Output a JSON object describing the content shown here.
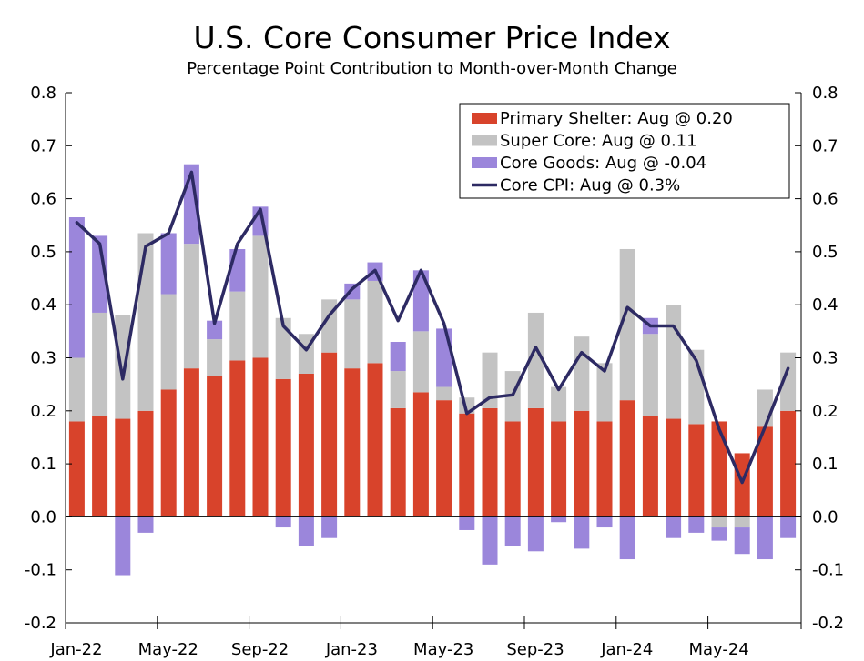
{
  "chart_data": {
    "type": "bar",
    "title": "U.S. Core Consumer Price Index",
    "subtitle": "Percentage Point Contribution to Month-over-Month Change",
    "stacked": true,
    "ylim": [
      -0.2,
      0.8
    ],
    "y_ticks": [
      "0.8",
      "0.7",
      "0.6",
      "0.5",
      "0.4",
      "0.3",
      "0.2",
      "0.1",
      "0.0",
      "-0.1",
      "-0.2"
    ],
    "y_tick_values": [
      0.8,
      0.7,
      0.6,
      0.5,
      0.4,
      0.3,
      0.2,
      0.1,
      0.0,
      -0.1,
      -0.2
    ],
    "secondary_y_axis": true,
    "x_tick_labels": [
      "Jan-22",
      "May-22",
      "Sep-22",
      "Jan-23",
      "May-23",
      "Sep-23",
      "Jan-24",
      "May-24"
    ],
    "x_tick_positions": [
      0,
      4,
      8,
      12,
      16,
      20,
      24,
      28
    ],
    "categories": [
      "Jan-22",
      "Feb-22",
      "Mar-22",
      "Apr-22",
      "May-22",
      "Jun-22",
      "Jul-22",
      "Aug-22",
      "Sep-22",
      "Oct-22",
      "Nov-22",
      "Dec-22",
      "Jan-23",
      "Feb-23",
      "Mar-23",
      "Apr-23",
      "May-23",
      "Jun-23",
      "Jul-23",
      "Aug-23",
      "Sep-23",
      "Oct-23",
      "Nov-23",
      "Dec-23",
      "Jan-24",
      "Feb-24",
      "Mar-24",
      "Apr-24",
      "May-24",
      "Jun-24",
      "Jul-24",
      "Aug-24"
    ],
    "legend_position": "top-right",
    "series": [
      {
        "name": "Primary Shelter: Aug @ 0.20",
        "type": "bar",
        "color": "#D8432B",
        "values": [
          0.18,
          0.19,
          0.185,
          0.2,
          0.24,
          0.28,
          0.265,
          0.295,
          0.3,
          0.26,
          0.27,
          0.31,
          0.28,
          0.29,
          0.205,
          0.235,
          0.22,
          0.195,
          0.205,
          0.18,
          0.205,
          0.18,
          0.2,
          0.18,
          0.22,
          0.19,
          0.185,
          0.175,
          0.18,
          0.12,
          0.17,
          0.2
        ]
      },
      {
        "name": "Super Core: Aug @ 0.11",
        "type": "bar",
        "color": "#C3C3C3",
        "values": [
          0.12,
          0.195,
          0.195,
          0.335,
          0.18,
          0.235,
          0.07,
          0.13,
          0.23,
          0.115,
          0.075,
          0.1,
          0.13,
          0.155,
          0.07,
          0.115,
          0.025,
          0.03,
          0.105,
          0.095,
          0.18,
          0.065,
          0.14,
          0.11,
          0.285,
          0.155,
          0.215,
          0.14,
          -0.02,
          -0.02,
          0.07,
          0.11
        ]
      },
      {
        "name": "Core Goods: Aug @ -0.04",
        "type": "bar",
        "color": "#9B86DB",
        "values": [
          0.265,
          0.145,
          -0.11,
          -0.03,
          0.115,
          0.15,
          0.035,
          0.08,
          0.055,
          -0.02,
          -0.055,
          -0.04,
          0.03,
          0.035,
          0.055,
          0.115,
          0.11,
          -0.025,
          -0.09,
          -0.055,
          -0.065,
          -0.01,
          -0.06,
          -0.02,
          -0.08,
          0.03,
          -0.04,
          -0.03,
          -0.025,
          -0.05,
          -0.08,
          -0.04
        ]
      },
      {
        "name": "Core CPI: Aug @ 0.3%",
        "type": "line",
        "color": "#2D2A63",
        "values": [
          0.555,
          0.515,
          0.26,
          0.51,
          0.535,
          0.65,
          0.365,
          0.515,
          0.58,
          0.36,
          0.315,
          0.38,
          0.43,
          0.465,
          0.37,
          0.465,
          0.365,
          0.195,
          0.225,
          0.23,
          0.32,
          0.24,
          0.31,
          0.275,
          0.395,
          0.36,
          0.36,
          0.295,
          0.165,
          0.065,
          0.17,
          0.28
        ]
      }
    ]
  }
}
